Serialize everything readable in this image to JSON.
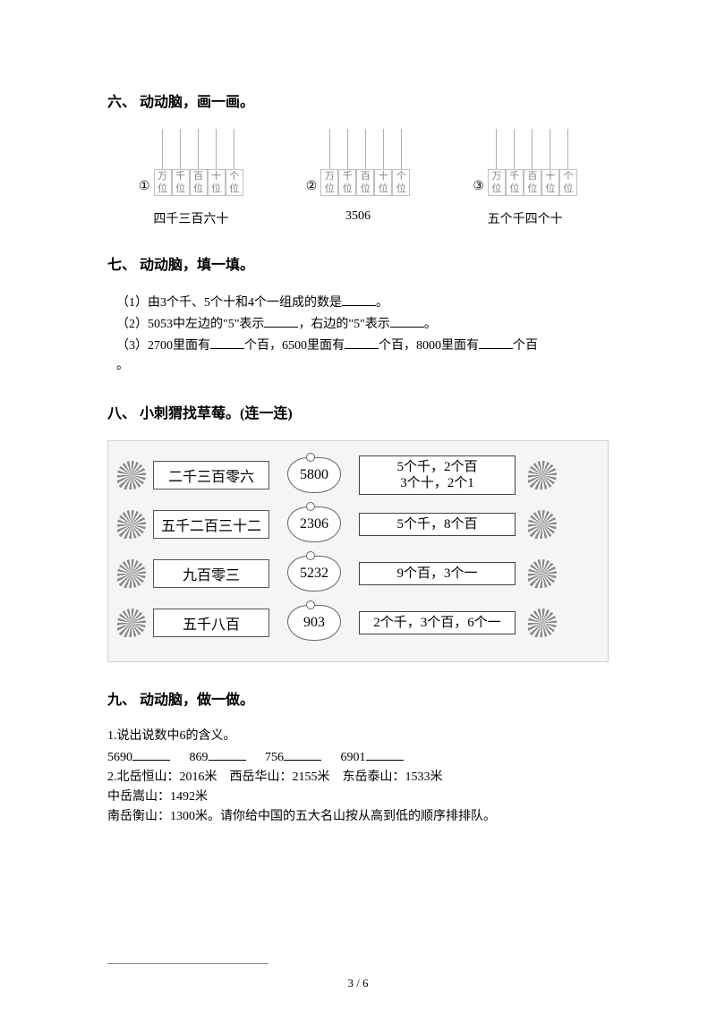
{
  "section6": {
    "title": "六、 动动脑，画一画。",
    "placeColumns": [
      "万",
      "千",
      "百",
      "十",
      "个"
    ],
    "placeSuffix": "位",
    "items": [
      {
        "marker": "①",
        "caption": "四千三百六十"
      },
      {
        "marker": "②",
        "caption": "3506"
      },
      {
        "marker": "③",
        "caption": "五个千四个十"
      }
    ]
  },
  "section7": {
    "title": "七、 动动脑，填一填。",
    "q1_pre": "（1）由3个千、5个十和4个一组成的数是",
    "q1_post": "。",
    "q2_a": "（2）5053中左边的\"5\"表示",
    "q2_b": "，右边的\"5\"表示",
    "q2_c": "。",
    "q3_a": "（3）2700里面有",
    "q3_b": "个百，6500里面有",
    "q3_c": "个百，8000里面有",
    "q3_d": "个百",
    "q3_e": "。"
  },
  "section8": {
    "title": "八、 小刺猬找草莓。(连一连)",
    "rows": [
      {
        "left": "二千三百零六",
        "mid": "5800",
        "right": "5个千，2个百\n3个十，2个1"
      },
      {
        "left": "五千二百三十二",
        "mid": "2306",
        "right": "5个千，8个百"
      },
      {
        "left": "九百零三",
        "mid": "5232",
        "right": "9个百，3个一"
      },
      {
        "left": "五千八百",
        "mid": "903",
        "right": "2个千，3个百，6个一"
      }
    ]
  },
  "section9": {
    "title": "九、 动动脑，做一做。",
    "line1": "1.说出说数中6的含义。",
    "nums": [
      "5690",
      "869",
      "756",
      "6901"
    ],
    "line2a": "2.北岳恒山：2016米　西岳华山：2155米　东岳泰山：1533米",
    "line2b": "中岳嵩山：1492米",
    "line2c": "南岳衡山：1300米。请你给中国的五大名山按从高到低的顺序排排队。"
  },
  "pageNum": "3 / 6"
}
